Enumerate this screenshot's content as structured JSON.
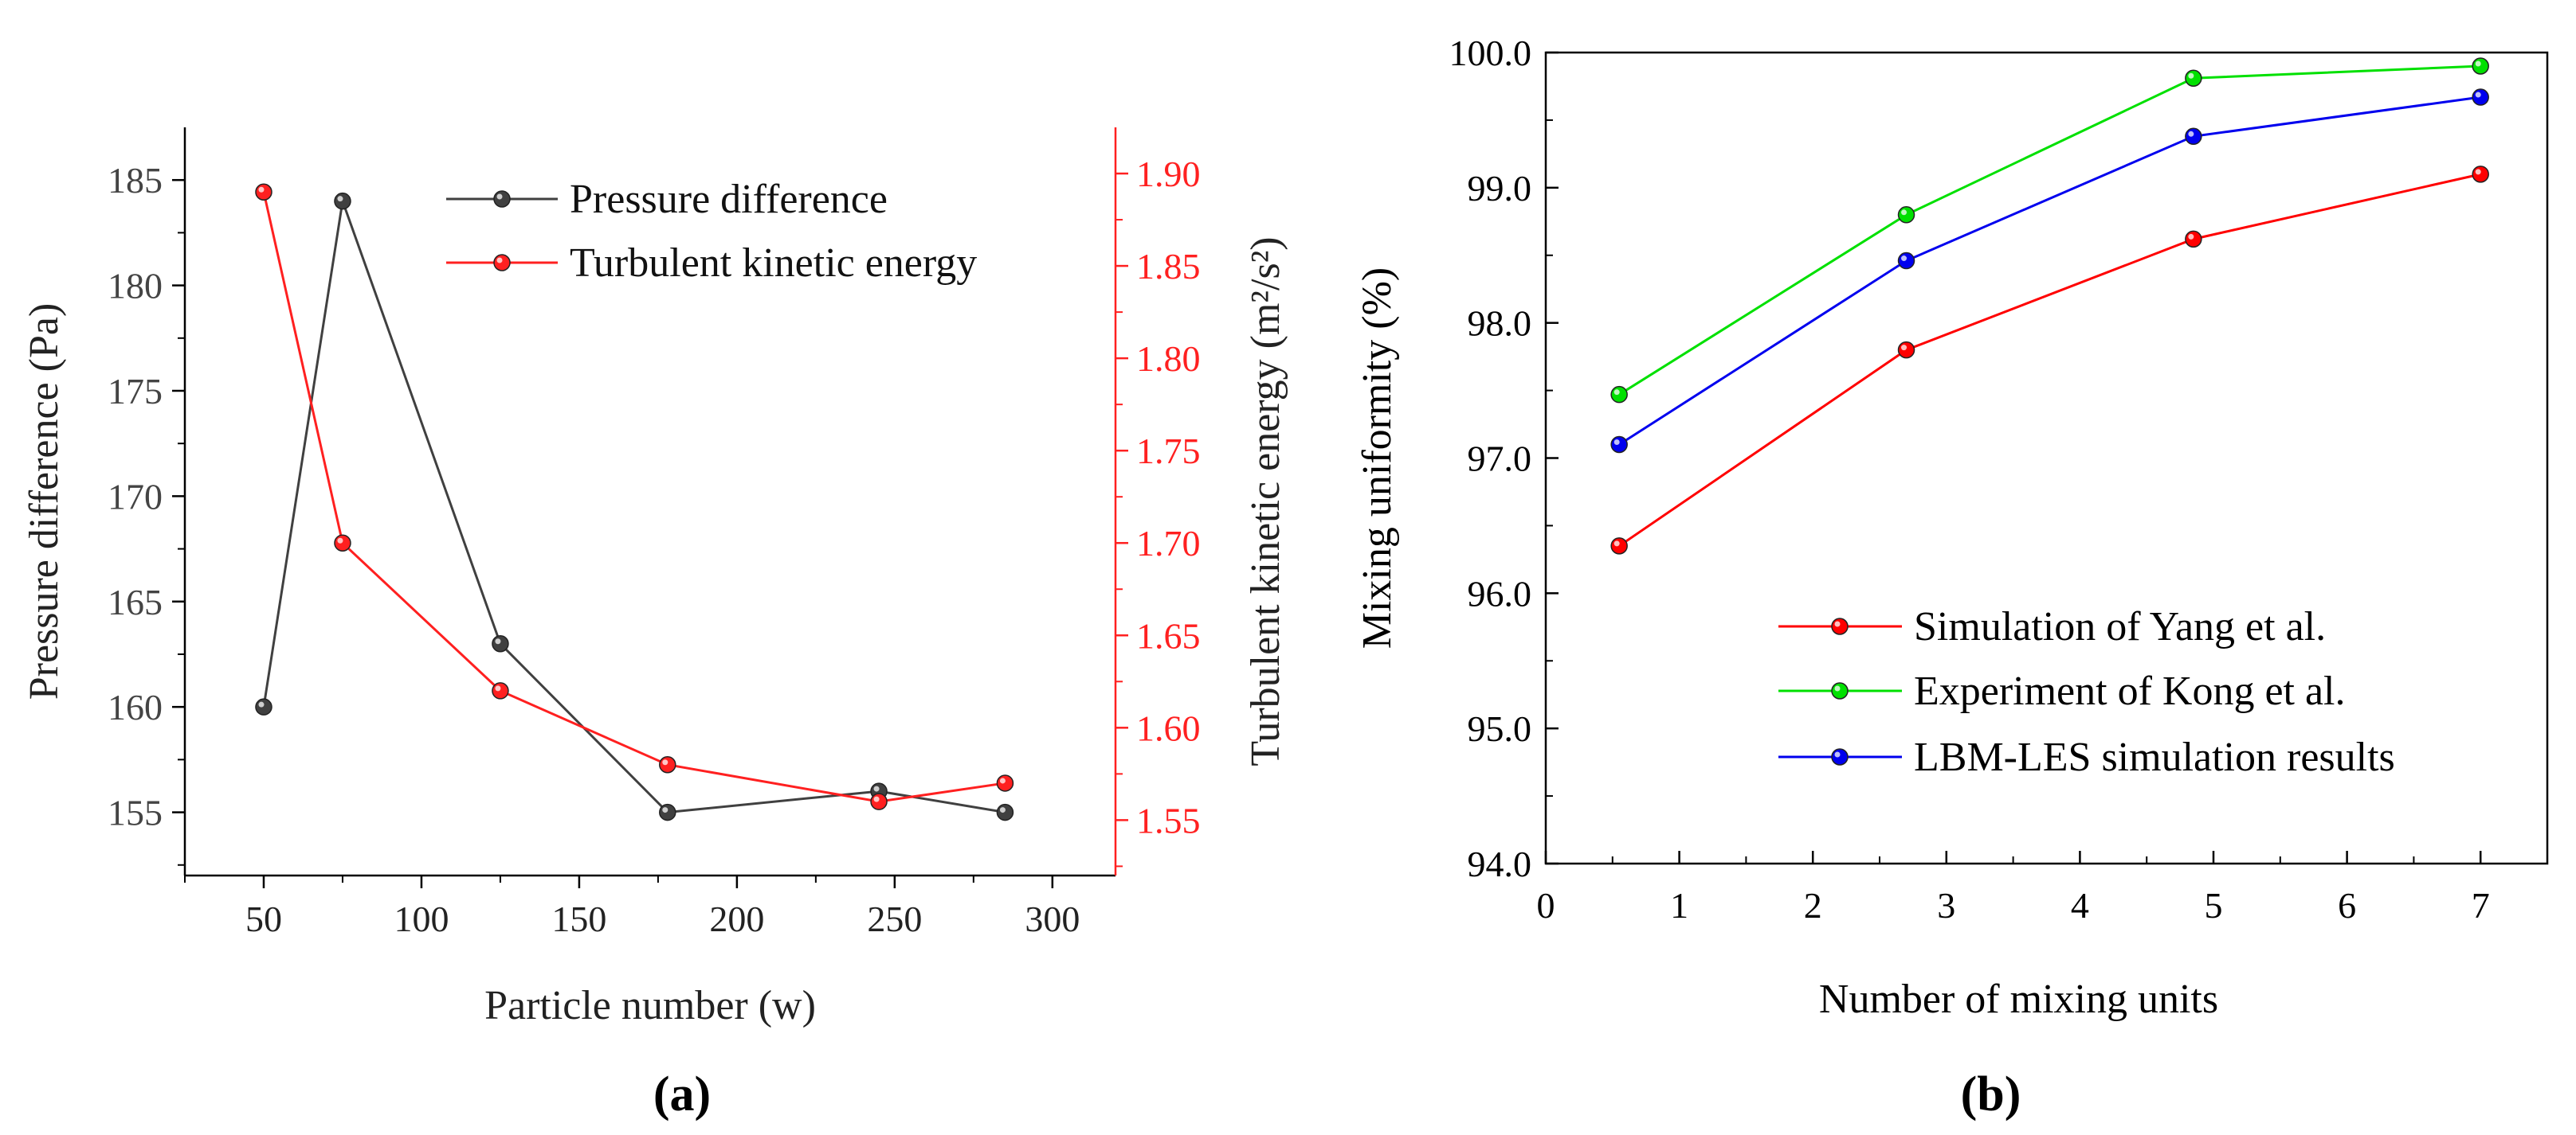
{
  "chart_data": [
    {
      "type": "line",
      "panel_label": "(a)",
      "xlabel": "Particle number (w)",
      "ylabel_left": "Pressure difference (Pa)",
      "ylabel_right": "Turbulent kinetic energy (m²/s²)",
      "xlim": [
        25,
        320
      ],
      "ylim_left": [
        152,
        187.5
      ],
      "ylim_right": [
        1.52,
        1.925
      ],
      "xticks": [
        50,
        100,
        150,
        200,
        250,
        300
      ],
      "xtick_labels": [
        "50",
        "100",
        "150",
        "200",
        "250",
        "300"
      ],
      "yticks_left": [
        155,
        160,
        165,
        170,
        175,
        180,
        185
      ],
      "ytick_labels_left": [
        "155",
        "160",
        "165",
        "170",
        "175",
        "180",
        "185"
      ],
      "yticks_right": [
        1.55,
        1.6,
        1.65,
        1.7,
        1.75,
        1.8,
        1.85,
        1.9
      ],
      "ytick_labels_right": [
        "1.55",
        "1.60",
        "1.65",
        "1.70",
        "1.75",
        "1.80",
        "1.85",
        "1.90"
      ],
      "legend_position": "top-right",
      "series": [
        {
          "name": "Pressure difference",
          "axis": "left",
          "color": "#404040",
          "x": [
            50,
            75,
            125,
            178,
            245,
            285
          ],
          "y": [
            160,
            184,
            163,
            155,
            156,
            155
          ]
        },
        {
          "name": "Turbulent kinetic energy",
          "axis": "right",
          "color": "#ff2020",
          "x": [
            50,
            75,
            125,
            178,
            245,
            285
          ],
          "y": [
            1.89,
            1.7,
            1.62,
            1.58,
            1.56,
            1.57
          ]
        }
      ]
    },
    {
      "type": "line",
      "panel_label": "(b)",
      "xlabel": "Number of mixing units",
      "ylabel": "Mixing uniformity (%)",
      "xlim": [
        0,
        7.5
      ],
      "ylim": [
        94.0,
        100.0
      ],
      "xticks": [
        0,
        1,
        2,
        3,
        4,
        5,
        6,
        7
      ],
      "xtick_labels": [
        "0",
        "1",
        "2",
        "3",
        "4",
        "5",
        "6",
        "7"
      ],
      "yticks": [
        94,
        95,
        96,
        97,
        98,
        99,
        100
      ],
      "ytick_labels": [
        "94.0",
        "95.0",
        "96.0",
        "97.0",
        "98.0",
        "99.0",
        "100.0"
      ],
      "legend_position": "bottom-right",
      "series": [
        {
          "name": "Simulation of Yang et al.",
          "color": "#ff0000",
          "x": [
            0.55,
            2.7,
            4.85,
            7.0
          ],
          "y": [
            96.35,
            97.8,
            98.62,
            99.1
          ]
        },
        {
          "name": "Experiment  of Kong et al.",
          "color": "#00e000",
          "x": [
            0.55,
            2.7,
            4.85,
            7.0
          ],
          "y": [
            97.47,
            98.8,
            99.81,
            99.9
          ]
        },
        {
          "name": "LBM-LES simulation results",
          "color": "#0000ee",
          "x": [
            0.55,
            2.7,
            4.85,
            7.0
          ],
          "y": [
            97.1,
            98.46,
            99.38,
            99.67
          ]
        }
      ]
    }
  ]
}
